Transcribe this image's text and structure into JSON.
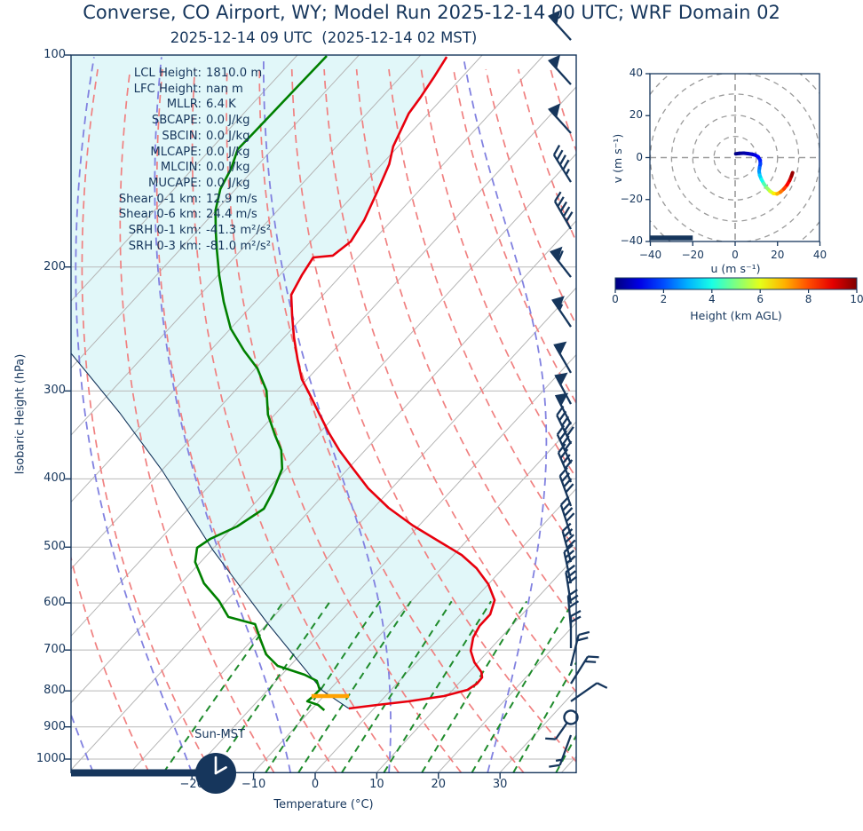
{
  "header": {
    "title": "Converse, CO Airport, WY; Model Run 2025-12-14 00 UTC; WRF Domain 02",
    "subtitle": "2025-12-14 09 UTC  (2025-12-14 02 MST)"
  },
  "stats": [
    {
      "label": "LCL Height:",
      "value": "1810.0 m"
    },
    {
      "label": "LFC Height:",
      "value": "nan m"
    },
    {
      "label": "MLLR:",
      "value": "6.4 K"
    },
    {
      "label": "SBCAPE:",
      "value": "0.0 J/kg"
    },
    {
      "label": "SBCIN:",
      "value": "0.0 J/kg"
    },
    {
      "label": "MLCAPE:",
      "value": "0.0 J/kg"
    },
    {
      "label": "MLCIN:",
      "value": "0.0 J/kg"
    },
    {
      "label": "MUCAPE:",
      "value": "0.0 J/kg"
    },
    {
      "label": "Shear 0-1 km:",
      "value": "12.9 m/s"
    },
    {
      "label": "Shear 0-6 km:",
      "value": "24.4 m/s"
    },
    {
      "label": "SRH 0-1 km:",
      "value": "-41.3 m²/s²"
    },
    {
      "label": "SRH 0-3 km:",
      "value": "-81.0 m²/s²"
    }
  ],
  "skewt": {
    "xlabel": "Temperature (°C)",
    "ylabel": "Isobaric Height (hPa)",
    "sun_label": "Sun-MST",
    "x_tick_values": [
      -20,
      -10,
      0,
      10,
      20,
      30
    ],
    "x_tick_labels": [
      "−20",
      "−10",
      "0",
      "10",
      "20",
      "30"
    ],
    "y_tick_values": [
      100,
      200,
      300,
      400,
      500,
      600,
      700,
      800,
      900,
      1000
    ],
    "clock_time": "02:00"
  },
  "colors": {
    "navy": "#16365c",
    "temperature": "#e8000d",
    "dewpoint": "#008000",
    "parcel": "#16365c",
    "isotherm": "#b5b5b5",
    "pressure_line": "#b9b9b9",
    "dry_adiabat": "#f08080",
    "moist_adiabat": "#8181e0",
    "mixing_ratio": "#1f8b2c",
    "shade": "rgba(23,190,207,0.13)",
    "lcl_marker": "#ffa200",
    "ring": "#9a9a9a"
  },
  "chart_data": {
    "type": "line",
    "subtype": "skewT-logP sounding with hodograph inset",
    "title": "Converse, CO Airport, WY; Model Run 2025-12-14 00 UTC; WRF Domain 02",
    "xlabel": "Temperature (°C)",
    "ylabel": "Isobaric Height (hPa)",
    "xlim": [
      -25,
      32.5
    ],
    "ylim": [
      1050,
      100
    ],
    "series": [
      {
        "name": "temperature",
        "units": "pressure_hPa,temp_C",
        "points": [
          [
            100.6,
            -85.5
          ],
          [
            107.8,
            -84.5
          ],
          [
            114.9,
            -83.7
          ],
          [
            121.1,
            -83.2
          ],
          [
            134.9,
            -80.8
          ],
          [
            142.9,
            -78.8
          ],
          [
            155.9,
            -76.7
          ],
          [
            171.6,
            -74.5
          ],
          [
            184.0,
            -73.5
          ],
          [
            192.7,
            -74.3
          ],
          [
            193.9,
            -77.2
          ],
          [
            205.5,
            -76.4
          ],
          [
            219.1,
            -75.2
          ],
          [
            234.2,
            -72.0
          ],
          [
            251.8,
            -68.4
          ],
          [
            270.7,
            -64.5
          ],
          [
            288.6,
            -60.9
          ],
          [
            301.4,
            -57.8
          ],
          [
            320.4,
            -53.5
          ],
          [
            343.5,
            -48.6
          ],
          [
            364.2,
            -44.2
          ],
          [
            385.9,
            -39.4
          ],
          [
            412.6,
            -33.8
          ],
          [
            439.7,
            -27.6
          ],
          [
            465.9,
            -21.0
          ],
          [
            491.0,
            -14.3
          ],
          [
            512.9,
            -8.7
          ],
          [
            535.7,
            -4.3
          ],
          [
            564.4,
            0.0
          ],
          [
            594.7,
            3.4
          ],
          [
            622.9,
            4.8
          ],
          [
            647.0,
            4.8
          ],
          [
            671.8,
            5.5
          ],
          [
            701.9,
            7.1
          ],
          [
            728.8,
            9.4
          ],
          [
            752.4,
            12.0
          ],
          [
            765.6,
            12.9
          ],
          [
            781.4,
            13.0
          ],
          [
            797.4,
            12.4
          ],
          [
            813.7,
            9.5
          ],
          [
            828.0,
            4.5
          ],
          [
            837.6,
            0.0
          ],
          [
            847.4,
            -4.1
          ]
        ]
      },
      {
        "name": "dewpoint",
        "units": "pressure_hPa,temp_C",
        "points": [
          [
            100.3,
            -105.1
          ],
          [
            112.6,
            -105.3
          ],
          [
            129.1,
            -105.5
          ],
          [
            136.1,
            -105.6
          ],
          [
            145.0,
            -103.8
          ],
          [
            155.0,
            -102.5
          ],
          [
            166.2,
            -100.1
          ],
          [
            177.7,
            -97.0
          ],
          [
            188.3,
            -94.2
          ],
          [
            205.5,
            -89.8
          ],
          [
            224.2,
            -85.1
          ],
          [
            244.6,
            -80.0
          ],
          [
            263.0,
            -74.5
          ],
          [
            278.7,
            -69.7
          ],
          [
            299.7,
            -64.9
          ],
          [
            324.1,
            -61.1
          ],
          [
            346.5,
            -56.9
          ],
          [
            364.2,
            -53.6
          ],
          [
            386.9,
            -50.7
          ],
          [
            418.6,
            -48.7
          ],
          [
            441.0,
            -47.7
          ],
          [
            467.3,
            -49.4
          ],
          [
            486.7,
            -51.9
          ],
          [
            501.0,
            -52.7
          ],
          [
            524.9,
            -50.9
          ],
          [
            562.7,
            -46.3
          ],
          [
            596.3,
            -41.2
          ],
          [
            628.2,
            -37.3
          ],
          [
            643.1,
            -31.9
          ],
          [
            675.5,
            -28.8
          ],
          [
            709.9,
            -25.6
          ],
          [
            737.3,
            -22.0
          ],
          [
            758.9,
            -16.3
          ],
          [
            774.4,
            -13.4
          ],
          [
            797.2,
            -11.6
          ],
          [
            815.9,
            -11.7
          ],
          [
            827.8,
            -11.9
          ],
          [
            837.6,
            -9.6
          ],
          [
            852.3,
            -7.8
          ]
        ]
      },
      {
        "name": "parcel_profile",
        "units": "pressure_hPa,temp_C",
        "points": [
          [
            265.3,
            -102.2
          ],
          [
            282.7,
            -96.7
          ],
          [
            322.3,
            -85.4
          ],
          [
            389.2,
            -69.9
          ],
          [
            505.4,
            -49.7
          ],
          [
            637.5,
            -30.5
          ],
          [
            799.6,
            -11.0
          ],
          [
            847.4,
            -4.1
          ]
        ]
      }
    ],
    "lcl_marker": {
      "pressure": 813.7,
      "t_from": -12.0,
      "t_to": -5.9
    },
    "wind_barbs": [
      {
        "p": 95.2,
        "rot": -42,
        "kind": "p"
      },
      {
        "p": 110.1,
        "rot": -42,
        "kind": "p"
      },
      {
        "p": 129.1,
        "rot": -42,
        "kind": "p"
      },
      {
        "p": 151.5,
        "rot": -32,
        "kind": "b4h"
      },
      {
        "p": 176.7,
        "rot": -30,
        "kind": "b5"
      },
      {
        "p": 206.7,
        "rot": -38,
        "kind": "p1"
      },
      {
        "p": 243.2,
        "rot": -34,
        "kind": "ph"
      },
      {
        "p": 282.7,
        "rot": -30,
        "kind": "p"
      },
      {
        "p": 313.1,
        "rot": -28,
        "kind": "p"
      },
      {
        "p": 334.7,
        "rot": -27,
        "kind": "p"
      },
      {
        "p": 356.8,
        "rot": -26,
        "kind": "b5"
      },
      {
        "p": 380.3,
        "rot": -25,
        "kind": "b4"
      },
      {
        "p": 404.2,
        "rot": -23,
        "kind": "b4"
      },
      {
        "p": 437.1,
        "rot": -20,
        "kind": "b4"
      },
      {
        "p": 481.0,
        "rot": -18,
        "kind": "b4"
      },
      {
        "p": 524.9,
        "rot": -15,
        "kind": "b4"
      },
      {
        "p": 562.7,
        "rot": -12,
        "kind": "b3"
      },
      {
        "p": 601.6,
        "rot": -9,
        "kind": "b3"
      },
      {
        "p": 650.7,
        "rot": -5,
        "kind": "b3"
      },
      {
        "p": 695.7,
        "rot": 0,
        "kind": "b2"
      },
      {
        "p": 737.2,
        "rot": 14,
        "kind": "b2"
      },
      {
        "p": 781.3,
        "rot": 32,
        "kind": "b2"
      },
      {
        "p": 827.9,
        "rot": 55,
        "kind": "b1"
      },
      {
        "p": 872.4,
        "rot": 215,
        "kind": "c1"
      },
      {
        "p": 924.5,
        "rot": 200,
        "kind": "b1h"
      }
    ],
    "hodograph": {
      "xlabel": "u (m s⁻¹)",
      "ylabel": "v (m s⁻¹)",
      "u_ticks": [
        "−40",
        "−20",
        "0",
        "20",
        "40"
      ],
      "v_ticks": [
        "40",
        "20",
        "0",
        "−20",
        "−40"
      ],
      "u_tick_values": [
        -40,
        -20,
        0,
        20,
        40
      ],
      "v_tick_values": [
        40,
        20,
        0,
        -20,
        -40
      ],
      "ring_radii": [
        10,
        20,
        30,
        40,
        50
      ],
      "trace_u_v_heightkm": [
        [
          0.3,
          1.8,
          0
        ],
        [
          2,
          2,
          0.15
        ],
        [
          4,
          2.1,
          0.3
        ],
        [
          6,
          1.9,
          0.5
        ],
        [
          8,
          1.6,
          0.7
        ],
        [
          9.5,
          1.2,
          0.9
        ],
        [
          10.8,
          0.4,
          1.1
        ],
        [
          11.8,
          -1.2,
          1.4
        ],
        [
          11.9,
          -3,
          1.7
        ],
        [
          11.5,
          -4.8,
          2.1
        ],
        [
          11.3,
          -6.5,
          2.5
        ],
        [
          11.6,
          -8.4,
          3.0
        ],
        [
          12.4,
          -10.4,
          3.6
        ],
        [
          13.5,
          -12.4,
          4.2
        ],
        [
          14.9,
          -14.4,
          4.9
        ],
        [
          16.4,
          -16,
          5.5
        ],
        [
          18.1,
          -17.1,
          6.1
        ],
        [
          19.8,
          -17.3,
          6.7
        ],
        [
          21.4,
          -16.4,
          7.3
        ],
        [
          23,
          -14.9,
          7.9
        ],
        [
          24.5,
          -13,
          8.5
        ],
        [
          25.7,
          -10.9,
          9.0
        ],
        [
          26.6,
          -8.7,
          9.5
        ],
        [
          27.1,
          -7.2,
          10
        ]
      ],
      "scale_bar_u": [
        -40,
        -20
      ]
    },
    "colorbar": {
      "label": "Height (km AGL)",
      "ticks": [
        "0",
        "2",
        "4",
        "6",
        "8",
        "10"
      ],
      "tick_values": [
        0,
        2,
        4,
        6,
        8,
        10
      ],
      "range": [
        0,
        10
      ],
      "cmap": "jet"
    }
  }
}
